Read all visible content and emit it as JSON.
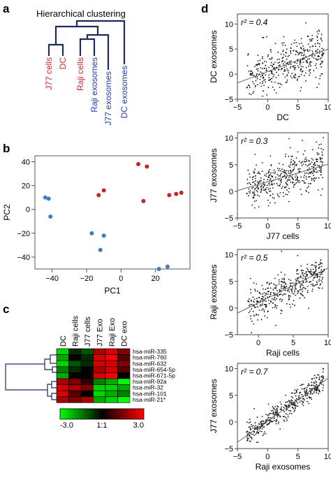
{
  "panels": {
    "a": "a",
    "b": "b",
    "c": "c",
    "d": "d"
  },
  "dendrogram": {
    "title": "Hierarchical clustering",
    "leaves": [
      {
        "label": "J77 cells",
        "color": "#d62728"
      },
      {
        "label": "DC",
        "color": "#d62728"
      },
      {
        "label": "Raji cells",
        "color": "#d62728"
      },
      {
        "label": "Raji exosomes",
        "color": "#2a3bb0"
      },
      {
        "label": "J77 exosomes",
        "color": "#2a3bb0"
      },
      {
        "label": "DC exosomes",
        "color": "#2a3bb0"
      }
    ]
  },
  "chart_data": [
    {
      "type": "scatter",
      "panel": "b",
      "xlabel": "PC1",
      "ylabel": "PC2",
      "xlim": [
        -50,
        40
      ],
      "ylim": [
        -50,
        45
      ],
      "xticks": [
        -40,
        -20,
        0,
        20
      ],
      "yticks": [
        -40,
        -20,
        0,
        20,
        40
      ],
      "series": [
        {
          "color": "#c0272d",
          "points": [
            [
              10,
              38
            ],
            [
              15,
              36
            ],
            [
              -10,
              16
            ],
            [
              -13,
              12
            ],
            [
              13,
              7
            ],
            [
              28,
              12
            ],
            [
              32,
              13
            ],
            [
              35,
              14
            ]
          ]
        },
        {
          "color": "#3e7cc0",
          "points": [
            [
              -44,
              10
            ],
            [
              -42,
              9
            ],
            [
              -41,
              -6
            ],
            [
              -17,
              -20
            ],
            [
              -10,
              -22
            ],
            [
              -12,
              -34
            ],
            [
              22,
              -50
            ],
            [
              27,
              -48
            ]
          ]
        }
      ]
    },
    {
      "type": "heatmap",
      "panel": "c",
      "columns": [
        "DC",
        "Raji cells",
        "J77 cells",
        "J77 Exo",
        "Raji Exo",
        "DC exo"
      ],
      "rows": [
        "hsa-miR-335",
        "hsa-miR-760",
        "hsa-miR-632",
        "hsa-miR-654-5p",
        "hsa-miR-671-5p",
        "hsa-miR-92a",
        "hsa-miR-32",
        "hsa-miR-101",
        "hsa-miR-21*"
      ],
      "values": [
        [
          -2.5,
          -0.5,
          -1.0,
          2.0,
          2.5,
          1.5
        ],
        [
          -2.0,
          0.0,
          -0.5,
          2.5,
          3.0,
          1.0
        ],
        [
          -2.5,
          -1.0,
          -0.5,
          2.5,
          2.5,
          1.5
        ],
        [
          -1.5,
          -0.5,
          0.0,
          2.0,
          2.5,
          1.0
        ],
        [
          -2.0,
          0.0,
          0.0,
          2.5,
          3.0,
          0.0
        ],
        [
          2.0,
          1.5,
          0.5,
          -1.5,
          -2.0,
          -3.0
        ],
        [
          2.5,
          2.0,
          1.5,
          -2.5,
          -2.5,
          -2.0
        ],
        [
          2.5,
          1.0,
          0.0,
          -2.5,
          -2.0,
          -1.5
        ],
        [
          2.0,
          1.5,
          2.0,
          -2.0,
          -2.5,
          -3.0
        ]
      ],
      "legend": {
        "min_label": "-3.0",
        "mid_label": "1:1",
        "max_label": "3.0",
        "low_color": "#00ff00",
        "mid_color": "#000000",
        "high_color": "#ff0000"
      }
    },
    {
      "type": "scatter",
      "panel": "d1",
      "xlabel": "DC",
      "ylabel": "DC exosomes",
      "xlim": [
        -5,
        10
      ],
      "ylim": [
        -5,
        12
      ],
      "xticks": [
        -5,
        0,
        5,
        10
      ],
      "yticks": [
        -5,
        0,
        5,
        10
      ],
      "annotation": "r² = 0.4",
      "fit": [
        0.45,
        0.5
      ]
    },
    {
      "type": "scatter",
      "panel": "d2",
      "xlabel": "J77 cells",
      "ylabel": "J77 exosomes",
      "xlim": [
        -5,
        10
      ],
      "ylim": [
        -5,
        11
      ],
      "xticks": [
        -5,
        0,
        5,
        10
      ],
      "yticks": [
        -5,
        0,
        5,
        10
      ],
      "annotation": "r² = 0.3",
      "fit": [
        0.33,
        1.8
      ]
    },
    {
      "type": "scatter",
      "panel": "d3",
      "xlabel": "Raji cells",
      "ylabel": "Raji exosomes",
      "xlim": [
        -3,
        10
      ],
      "ylim": [
        -5,
        11
      ],
      "xticks": [
        0,
        5,
        10
      ],
      "yticks": [
        -5,
        0,
        5,
        10
      ],
      "annotation": "r² = 0.5",
      "fit": [
        0.65,
        1.0
      ]
    },
    {
      "type": "scatter",
      "panel": "d4",
      "xlabel": "Raji exosomes",
      "ylabel": "J77 exosomes",
      "xlim": [
        -5,
        10
      ],
      "ylim": [
        -5,
        11
      ],
      "xticks": [
        -5,
        0,
        5,
        10
      ],
      "yticks": [
        -5,
        0,
        5,
        10
      ],
      "annotation": "r² = 0.7",
      "fit": [
        0.8,
        0.2
      ]
    }
  ],
  "d_tick_labels": {
    "d1": {
      "x": [
        "−5",
        "0",
        "5",
        "10"
      ],
      "y": [
        "−5",
        "0",
        "5",
        "10"
      ]
    },
    "d2": {
      "x": [
        "−5",
        "0",
        "5",
        "10"
      ],
      "y": [
        "−5",
        "0",
        "5",
        "10"
      ]
    },
    "d3": {
      "x": [
        "0",
        "5",
        "10"
      ],
      "y": [
        "−5",
        "0",
        "5",
        "10"
      ]
    },
    "d4": {
      "x": [
        "−5",
        "0",
        "5",
        "10"
      ],
      "y": [
        "−5",
        "0",
        "5",
        "10"
      ]
    }
  },
  "b_tick_labels": {
    "x": [
      "−40",
      "−20",
      "0",
      "20"
    ],
    "y": [
      "−40",
      "−20",
      "0",
      "20",
      "40"
    ]
  }
}
